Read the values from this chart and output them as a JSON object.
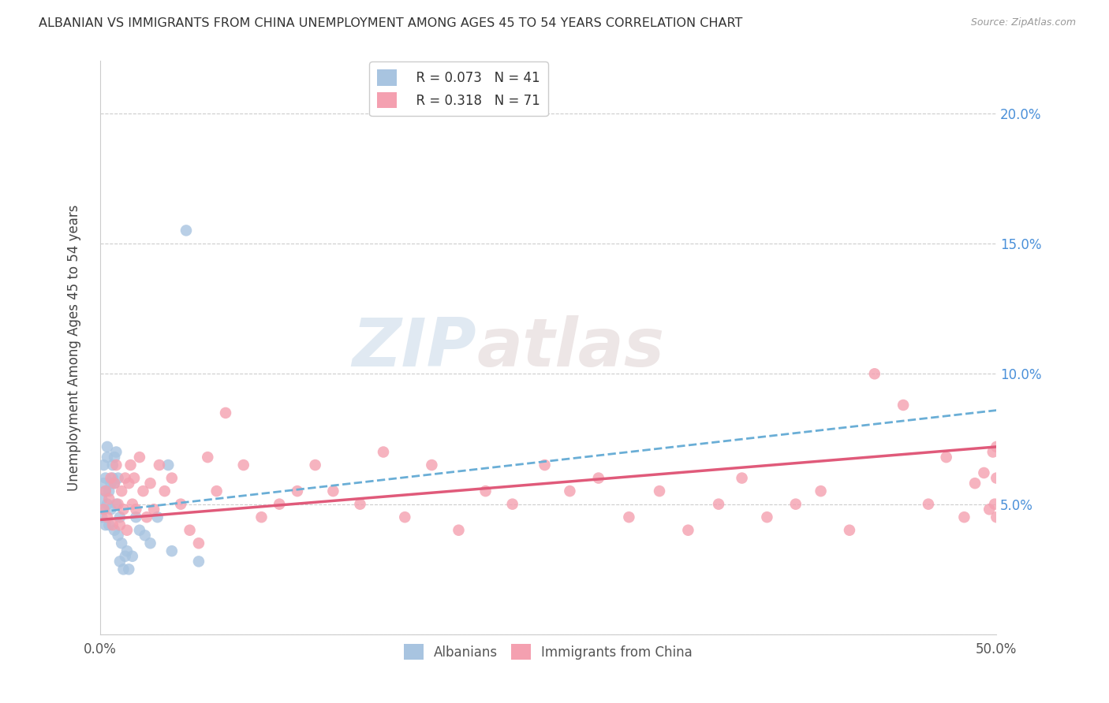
{
  "title": "ALBANIAN VS IMMIGRANTS FROM CHINA UNEMPLOYMENT AMONG AGES 45 TO 54 YEARS CORRELATION CHART",
  "source": "Source: ZipAtlas.com",
  "ylabel": "Unemployment Among Ages 45 to 54 years",
  "xlabel": "",
  "xlim": [
    0.0,
    0.5
  ],
  "ylim": [
    0.0,
    0.22
  ],
  "xticks": [
    0.0,
    0.05,
    0.1,
    0.15,
    0.2,
    0.25,
    0.3,
    0.35,
    0.4,
    0.45,
    0.5
  ],
  "yticks": [
    0.0,
    0.05,
    0.1,
    0.15,
    0.2
  ],
  "right_yticklabels": [
    "",
    "5.0%",
    "10.0%",
    "15.0%",
    "20.0%"
  ],
  "legend_r1": "R = 0.073",
  "legend_n1": "N = 41",
  "legend_r2": "R = 0.318",
  "legend_n2": "N = 71",
  "albanian_color": "#a8c4e0",
  "china_color": "#f4a0b0",
  "trendline_albanian_color": "#6aaed6",
  "trendline_china_color": "#e05a7a",
  "background_color": "#ffffff",
  "watermark_zip": "ZIP",
  "watermark_atlas": "atlas",
  "alb_trend_x": [
    0.0,
    0.5
  ],
  "alb_trend_y": [
    0.047,
    0.086
  ],
  "china_trend_x": [
    0.0,
    0.5
  ],
  "china_trend_y": [
    0.044,
    0.072
  ],
  "albanian_x": [
    0.001,
    0.001,
    0.002,
    0.002,
    0.002,
    0.003,
    0.003,
    0.003,
    0.004,
    0.004,
    0.004,
    0.005,
    0.005,
    0.006,
    0.006,
    0.007,
    0.007,
    0.008,
    0.008,
    0.008,
    0.009,
    0.009,
    0.01,
    0.01,
    0.011,
    0.011,
    0.012,
    0.013,
    0.014,
    0.015,
    0.016,
    0.018,
    0.02,
    0.022,
    0.025,
    0.028,
    0.032,
    0.038,
    0.04,
    0.048,
    0.055
  ],
  "albanian_y": [
    0.045,
    0.052,
    0.048,
    0.058,
    0.065,
    0.042,
    0.055,
    0.06,
    0.05,
    0.068,
    0.072,
    0.055,
    0.042,
    0.058,
    0.048,
    0.065,
    0.06,
    0.058,
    0.04,
    0.068,
    0.05,
    0.07,
    0.06,
    0.038,
    0.045,
    0.028,
    0.035,
    0.025,
    0.03,
    0.032,
    0.025,
    0.03,
    0.045,
    0.04,
    0.038,
    0.035,
    0.045,
    0.065,
    0.032,
    0.155,
    0.028
  ],
  "china_x": [
    0.002,
    0.003,
    0.004,
    0.005,
    0.006,
    0.007,
    0.008,
    0.009,
    0.01,
    0.011,
    0.012,
    0.013,
    0.014,
    0.015,
    0.016,
    0.017,
    0.018,
    0.019,
    0.02,
    0.022,
    0.024,
    0.026,
    0.028,
    0.03,
    0.033,
    0.036,
    0.04,
    0.045,
    0.05,
    0.055,
    0.06,
    0.065,
    0.07,
    0.08,
    0.09,
    0.1,
    0.11,
    0.12,
    0.13,
    0.145,
    0.158,
    0.17,
    0.185,
    0.2,
    0.215,
    0.23,
    0.248,
    0.262,
    0.278,
    0.295,
    0.312,
    0.328,
    0.345,
    0.358,
    0.372,
    0.388,
    0.402,
    0.418,
    0.432,
    0.448,
    0.462,
    0.472,
    0.482,
    0.488,
    0.493,
    0.496,
    0.498,
    0.499,
    0.5,
    0.5,
    0.5
  ],
  "china_y": [
    0.048,
    0.055,
    0.045,
    0.052,
    0.06,
    0.042,
    0.058,
    0.065,
    0.05,
    0.042,
    0.055,
    0.048,
    0.06,
    0.04,
    0.058,
    0.065,
    0.05,
    0.06,
    0.048,
    0.068,
    0.055,
    0.045,
    0.058,
    0.048,
    0.065,
    0.055,
    0.06,
    0.05,
    0.04,
    0.035,
    0.068,
    0.055,
    0.085,
    0.065,
    0.045,
    0.05,
    0.055,
    0.065,
    0.055,
    0.05,
    0.07,
    0.045,
    0.065,
    0.04,
    0.055,
    0.05,
    0.065,
    0.055,
    0.06,
    0.045,
    0.055,
    0.04,
    0.05,
    0.06,
    0.045,
    0.05,
    0.055,
    0.04,
    0.1,
    0.088,
    0.05,
    0.068,
    0.045,
    0.058,
    0.062,
    0.048,
    0.07,
    0.05,
    0.045,
    0.06,
    0.072
  ]
}
